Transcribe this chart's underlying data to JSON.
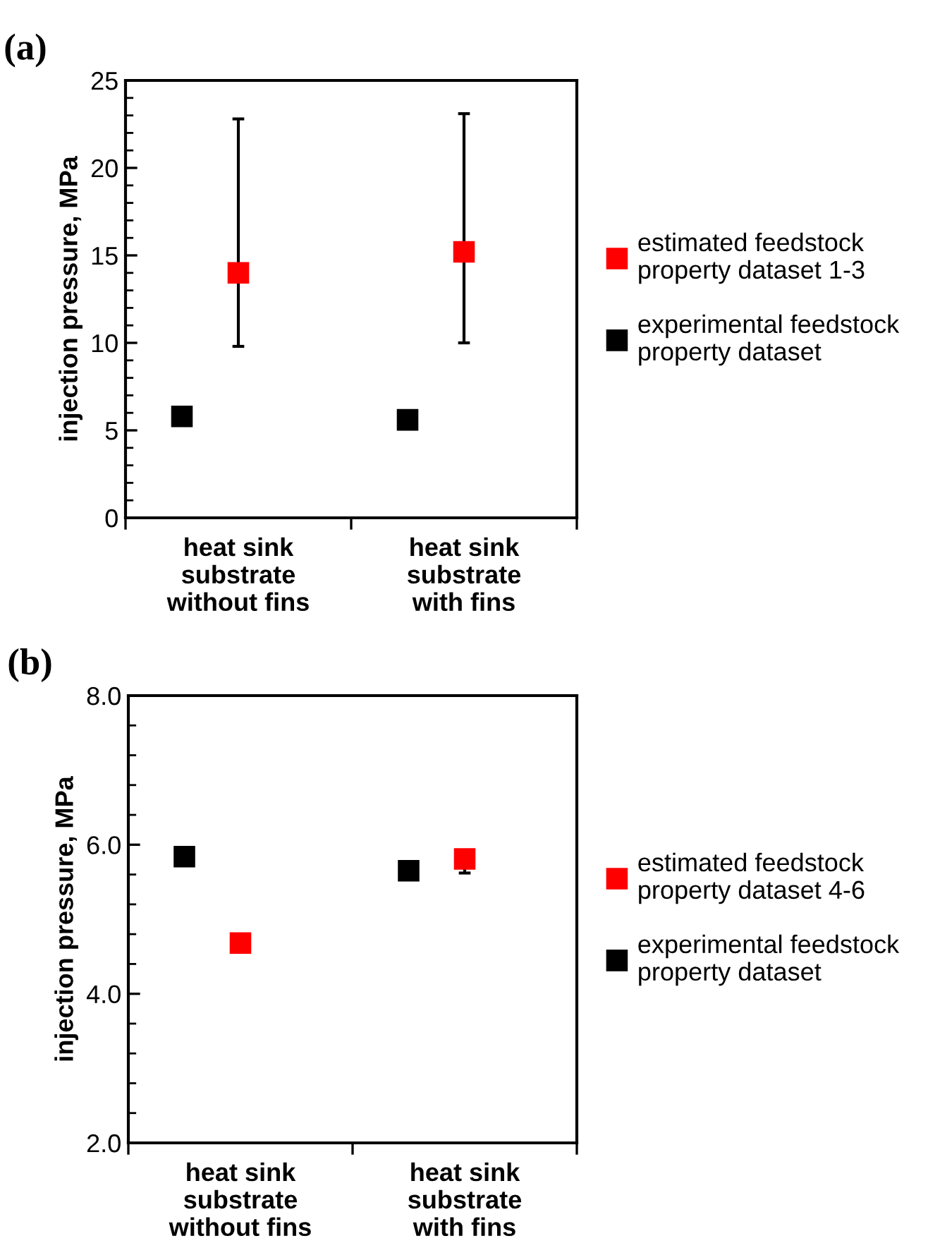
{
  "chart_data": [
    {
      "type": "scatter",
      "title": "(a)",
      "ylabel": "injection pressure, MPa",
      "categories": [
        "heat sink\nsubstrate\nwithout fins",
        "heat sink\nsubstrate\nwith fins"
      ],
      "series": [
        {
          "name": "estimated feedstock\nproperty dataset 1-3",
          "color": "#ff0000",
          "values": [
            14.0,
            15.2
          ],
          "errors": [
            [
              9.8,
              22.8
            ],
            [
              10.0,
              23.1
            ]
          ]
        },
        {
          "name": "experimental feedstock\nproperty dataset",
          "color": "#000000",
          "values": [
            5.8,
            5.6
          ]
        }
      ],
      "ylim": [
        0,
        25
      ],
      "yticks": [
        0,
        5,
        10,
        15,
        20,
        25
      ],
      "marker": "square",
      "legend": "right",
      "grid": false
    },
    {
      "type": "scatter",
      "title": "(b)",
      "ylabel": "injection pressure, MPa",
      "categories": [
        "heat sink\nsubstrate\nwithout fins",
        "heat sink\nsubstrate\nwith fins"
      ],
      "series": [
        {
          "name": "estimated feedstock\nproperty dataset 4-6",
          "color": "#ff0000",
          "values": [
            4.68,
            5.81
          ],
          "errors": [
            null,
            [
              5.62,
              5.9
            ]
          ]
        },
        {
          "name": "experimental feedstock\nproperty dataset",
          "color": "#000000",
          "values": [
            5.84,
            5.65
          ]
        }
      ],
      "ylim": [
        2.0,
        8.0
      ],
      "yticks": [
        {
          "value": 2.0,
          "label": "2.0"
        },
        {
          "value": 4.0,
          "label": "4.0"
        },
        {
          "value": 6.0,
          "label": "6.0"
        },
        {
          "value": 8.0,
          "label": "8.0"
        }
      ],
      "marker": "square",
      "legend": "right",
      "grid": false
    }
  ]
}
